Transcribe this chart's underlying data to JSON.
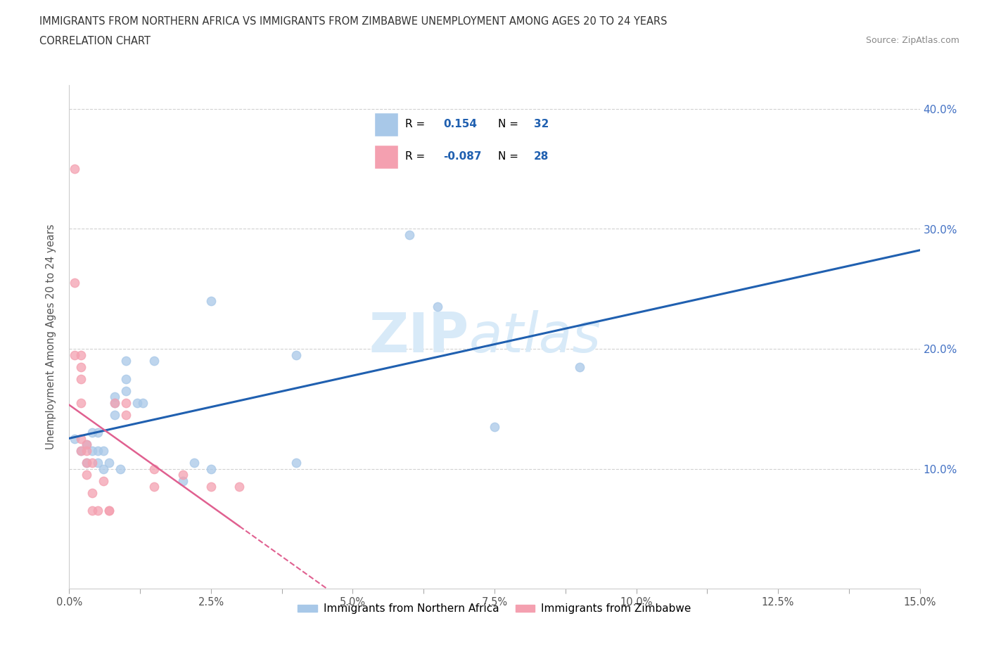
{
  "title_line1": "IMMIGRANTS FROM NORTHERN AFRICA VS IMMIGRANTS FROM ZIMBABWE UNEMPLOYMENT AMONG AGES 20 TO 24 YEARS",
  "title_line2": "CORRELATION CHART",
  "source_text": "Source: ZipAtlas.com",
  "ylabel": "Unemployment Among Ages 20 to 24 years",
  "xlim": [
    0.0,
    0.15
  ],
  "ylim": [
    0.0,
    0.42
  ],
  "xtick_labels": [
    "0.0%",
    "",
    "2.5%",
    "",
    "5.0%",
    "",
    "7.5%",
    "",
    "10.0%",
    "",
    "12.5%",
    "",
    "15.0%"
  ],
  "xtick_vals": [
    0.0,
    0.0125,
    0.025,
    0.0375,
    0.05,
    0.0625,
    0.075,
    0.0875,
    0.1,
    0.1125,
    0.125,
    0.1375,
    0.15
  ],
  "ytick_labels": [
    "10.0%",
    "20.0%",
    "30.0%",
    "40.0%"
  ],
  "ytick_vals": [
    0.1,
    0.2,
    0.3,
    0.4
  ],
  "r_blue": "0.154",
  "n_blue": "32",
  "r_pink": "-0.087",
  "n_pink": "28",
  "blue_scatter_color": "#a8c8e8",
  "pink_scatter_color": "#f4a0b0",
  "trend_blue_color": "#2060b0",
  "trend_pink_color": "#e06090",
  "right_axis_color": "#4472c4",
  "background_color": "#ffffff",
  "grid_color": "#cccccc",
  "watermark_zip": "ZIP",
  "watermark_atlas": "atlas",
  "watermark_color": "#d8eaf8",
  "watermark_fontsize": 56,
  "scatter_blue": [
    [
      0.001,
      0.125
    ],
    [
      0.002,
      0.115
    ],
    [
      0.003,
      0.105
    ],
    [
      0.003,
      0.12
    ],
    [
      0.004,
      0.13
    ],
    [
      0.004,
      0.115
    ],
    [
      0.005,
      0.105
    ],
    [
      0.005,
      0.115
    ],
    [
      0.005,
      0.13
    ],
    [
      0.006,
      0.1
    ],
    [
      0.006,
      0.115
    ],
    [
      0.007,
      0.105
    ],
    [
      0.008,
      0.16
    ],
    [
      0.008,
      0.155
    ],
    [
      0.008,
      0.145
    ],
    [
      0.009,
      0.1
    ],
    [
      0.01,
      0.175
    ],
    [
      0.01,
      0.19
    ],
    [
      0.01,
      0.165
    ],
    [
      0.012,
      0.155
    ],
    [
      0.013,
      0.155
    ],
    [
      0.015,
      0.19
    ],
    [
      0.02,
      0.09
    ],
    [
      0.022,
      0.105
    ],
    [
      0.025,
      0.24
    ],
    [
      0.025,
      0.1
    ],
    [
      0.04,
      0.195
    ],
    [
      0.04,
      0.105
    ],
    [
      0.06,
      0.295
    ],
    [
      0.065,
      0.235
    ],
    [
      0.075,
      0.135
    ],
    [
      0.09,
      0.185
    ]
  ],
  "scatter_pink": [
    [
      0.001,
      0.35
    ],
    [
      0.001,
      0.255
    ],
    [
      0.001,
      0.195
    ],
    [
      0.002,
      0.195
    ],
    [
      0.002,
      0.185
    ],
    [
      0.002,
      0.175
    ],
    [
      0.002,
      0.155
    ],
    [
      0.002,
      0.125
    ],
    [
      0.002,
      0.115
    ],
    [
      0.003,
      0.12
    ],
    [
      0.003,
      0.115
    ],
    [
      0.003,
      0.105
    ],
    [
      0.003,
      0.095
    ],
    [
      0.004,
      0.105
    ],
    [
      0.004,
      0.08
    ],
    [
      0.004,
      0.065
    ],
    [
      0.005,
      0.065
    ],
    [
      0.006,
      0.09
    ],
    [
      0.007,
      0.065
    ],
    [
      0.007,
      0.065
    ],
    [
      0.008,
      0.155
    ],
    [
      0.01,
      0.155
    ],
    [
      0.01,
      0.145
    ],
    [
      0.015,
      0.1
    ],
    [
      0.015,
      0.085
    ],
    [
      0.02,
      0.095
    ],
    [
      0.025,
      0.085
    ],
    [
      0.03,
      0.085
    ]
  ],
  "legend_r_color": "#2060b0",
  "legend_n_color": "#2060b0"
}
